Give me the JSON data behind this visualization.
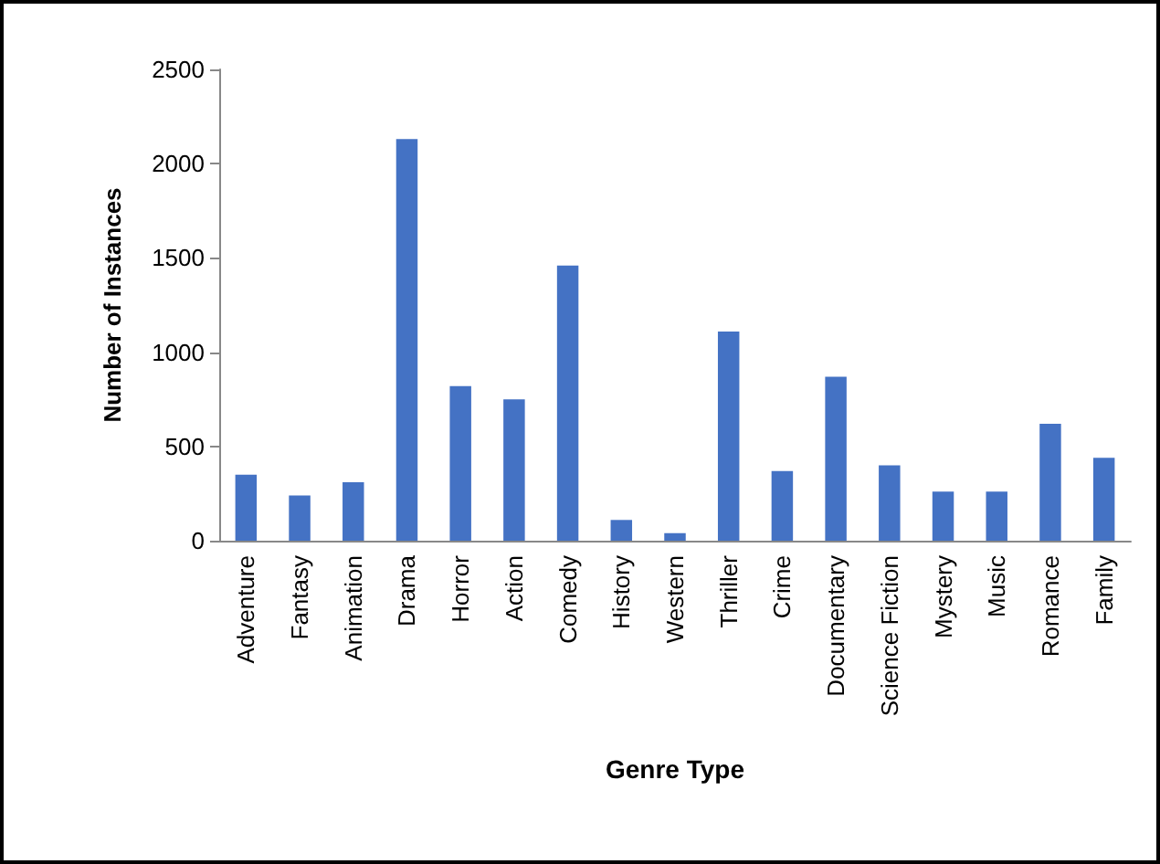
{
  "chart_data": {
    "type": "bar",
    "xlabel": "Genre Type",
    "ylabel": "Number of Instances",
    "categories": [
      "Adventure",
      "Fantasy",
      "Animation",
      "Drama",
      "Horror",
      "Action",
      "Comedy",
      "History",
      "Western",
      "Thriller",
      "Crime",
      "Documentary",
      "Science Fiction",
      "Mystery",
      "Music",
      "Romance",
      "Family"
    ],
    "values": [
      350,
      240,
      310,
      2130,
      820,
      750,
      1460,
      110,
      40,
      1110,
      370,
      870,
      400,
      260,
      260,
      620,
      440
    ],
    "color": "#4472c4",
    "ylim": [
      0,
      2500
    ],
    "yticks": [
      0,
      500,
      1000,
      1500,
      2000,
      2500
    ],
    "grid": false
  }
}
